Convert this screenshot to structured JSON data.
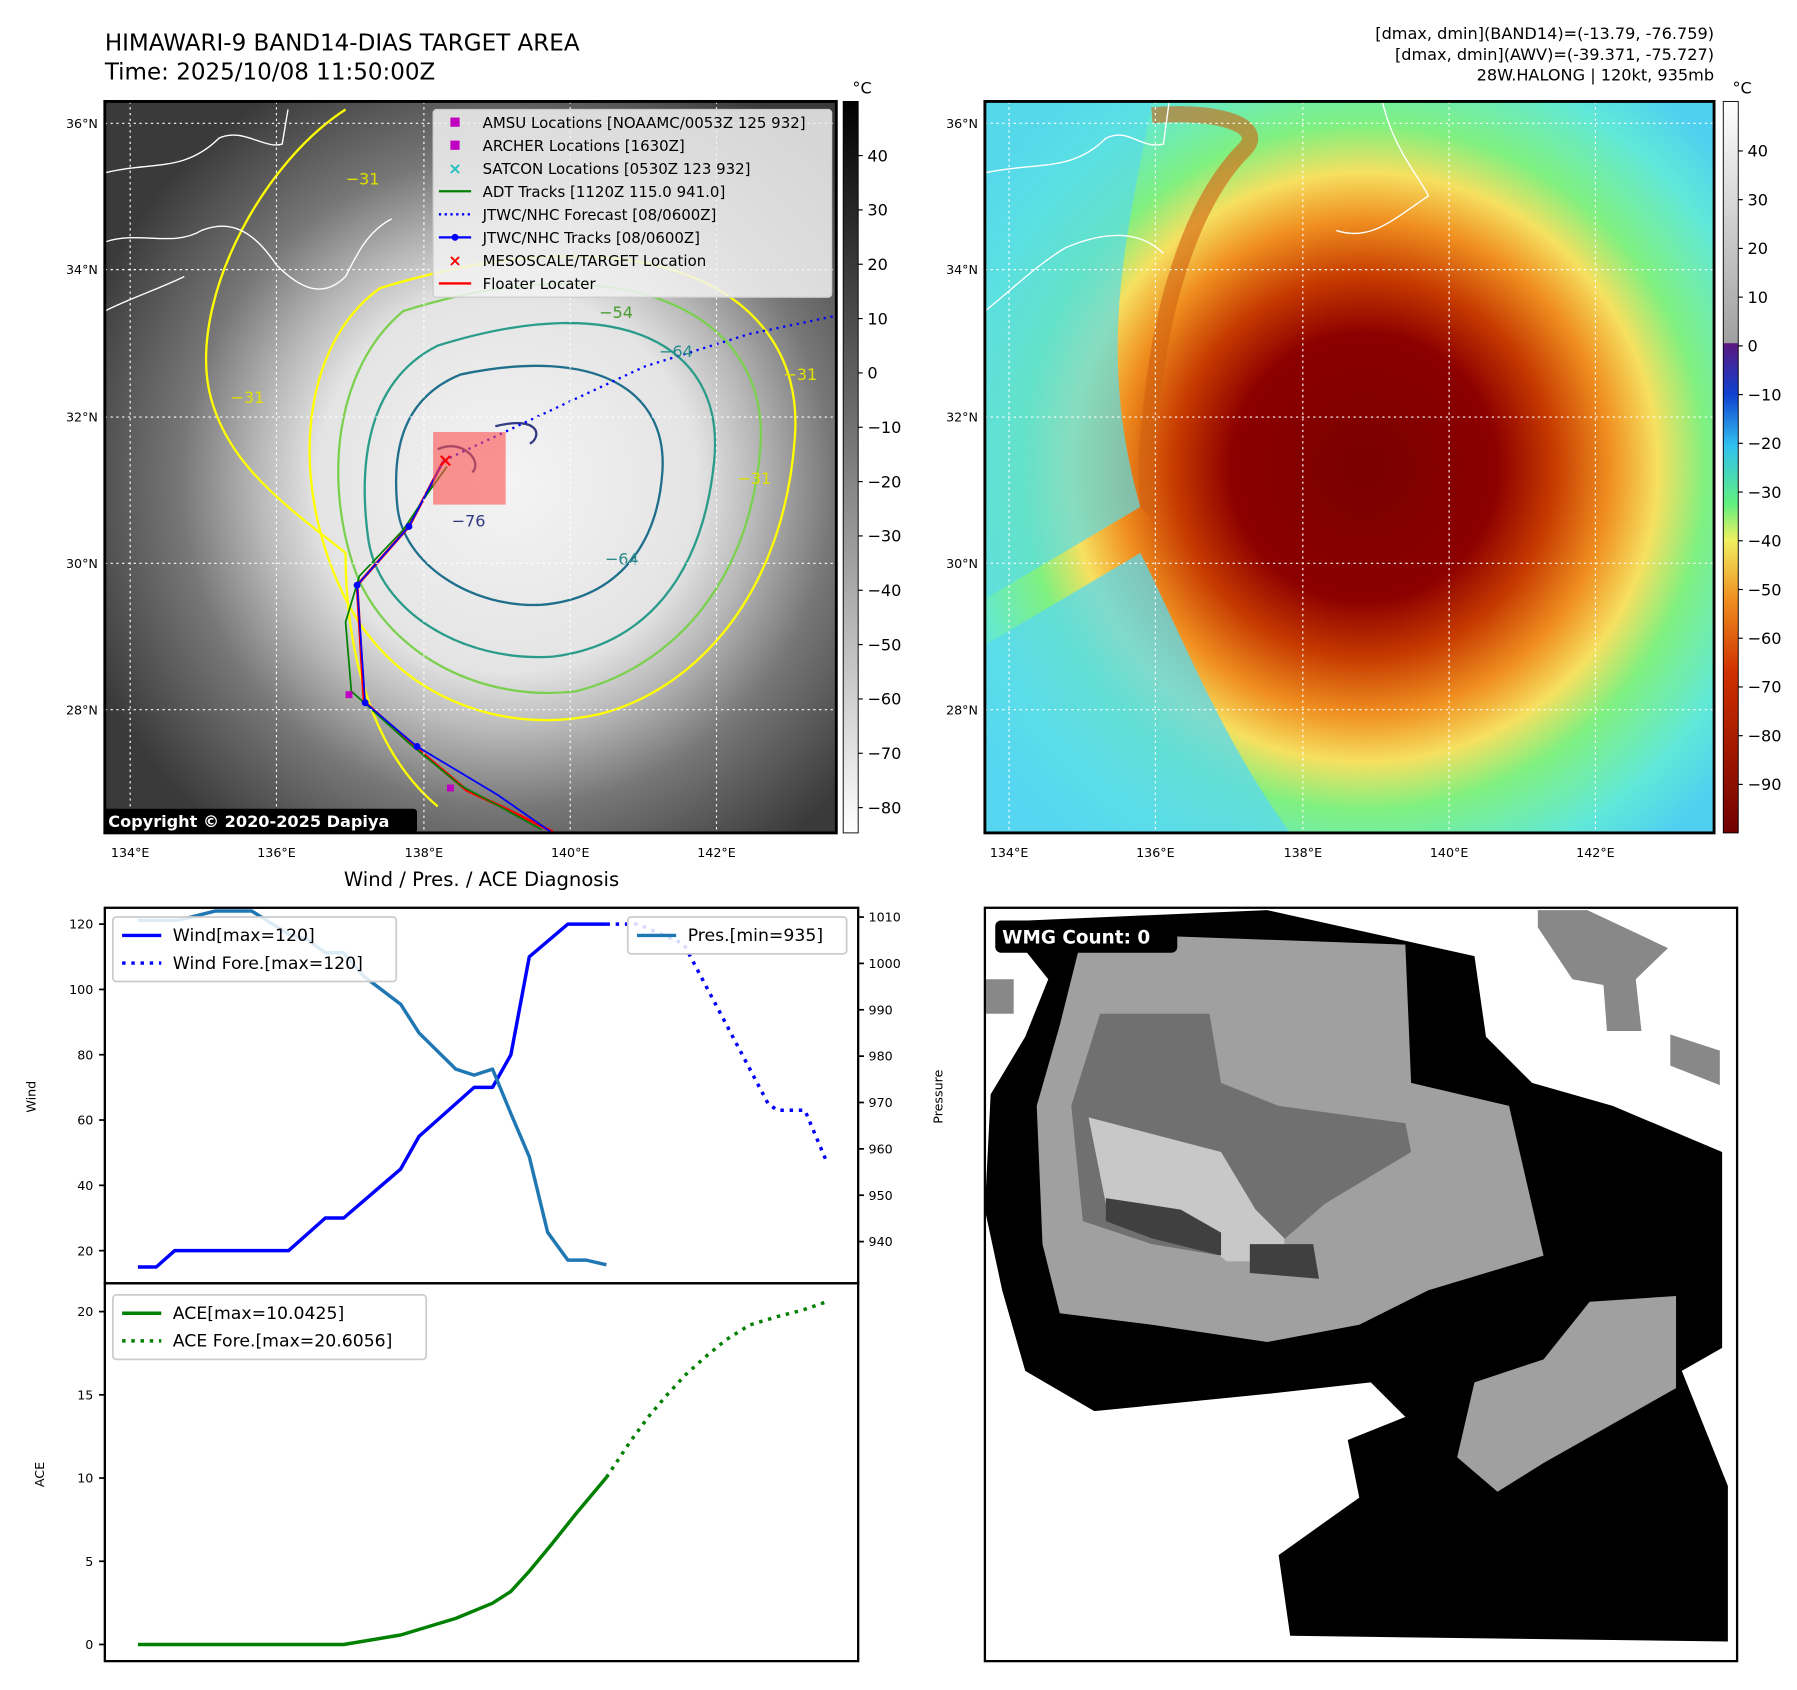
{
  "header": {
    "title": "HIMAWARI-9 BAND14-DIAS TARGET AREA",
    "time": "Time: 2025/10/08 11:50:00Z",
    "info": [
      "[dmax, dmin](BAND14)=(-13.79, -76.759)",
      "[dmax, dmin](AWV)=(-39.371, -75.727)",
      "28W.HALONG | 120kt, 935mb"
    ]
  },
  "map_ir": {
    "lat_labels": [
      "36°N",
      "34°N",
      "32°N",
      "30°N",
      "28°N"
    ],
    "lon_labels": [
      "134°E",
      "136°E",
      "138°E",
      "140°E",
      "142°E"
    ],
    "colorbar_unit": "°C",
    "colorbar_ticks": [
      "40",
      "30",
      "20",
      "10",
      "0",
      "−10",
      "−20",
      "−30",
      "−40",
      "−50",
      "−60",
      "−70",
      "−80"
    ],
    "copyright": "Copyright © 2020-2025 Dapiya",
    "contour_labels": [
      "−31",
      "−31",
      "−31",
      "−64",
      "−64",
      "−76",
      "−54",
      "−31"
    ],
    "legend": [
      {
        "label": "AMSU Locations [NOAAMC/0053Z 125 932]",
        "marker": "square",
        "color": "#c000c0"
      },
      {
        "label": "ARCHER Locations [1630Z]",
        "marker": "square",
        "color": "#c000c0"
      },
      {
        "label": "SATCON Locations [0530Z 123 932]",
        "marker": "x",
        "color": "#20c0c0"
      },
      {
        "label": "ADT Tracks [1120Z 115.0 941.0]",
        "marker": "line",
        "color": "#008000"
      },
      {
        "label": "JTWC/NHC Forecast [08/0600Z]",
        "marker": "dotted",
        "color": "#0000ff"
      },
      {
        "label": "JTWC/NHC Tracks [08/0600Z]",
        "marker": "line-dot",
        "color": "#0000ff"
      },
      {
        "label": "MESOSCALE/TARGET Location",
        "marker": "x",
        "color": "#ff0000"
      },
      {
        "label": "Floater Locater",
        "marker": "line",
        "color": "#ff0000"
      }
    ]
  },
  "map_awv": {
    "lat_labels": [
      "36°N",
      "34°N",
      "32°N",
      "30°N",
      "28°N"
    ],
    "lon_labels": [
      "134°E",
      "136°E",
      "138°E",
      "140°E",
      "142°E"
    ],
    "colorbar_unit": "°C",
    "colorbar_ticks": [
      "40",
      "30",
      "20",
      "10",
      "0",
      "−10",
      "−20",
      "−30",
      "−40",
      "−50",
      "−60",
      "−70",
      "−80",
      "−90"
    ]
  },
  "wmg": {
    "label": "WMG Count: 0"
  },
  "chart_data": [
    {
      "type": "line",
      "title": "Wind / Pres. / ACE Diagnosis",
      "ylabel": "Wind",
      "ylabel_right": "Pressure",
      "ylim": [
        10,
        125
      ],
      "ylim_right": [
        931,
        1012
      ],
      "yticks": [
        20,
        40,
        60,
        80,
        100,
        120
      ],
      "yticks_right": [
        940,
        950,
        960,
        970,
        980,
        990,
        1000,
        1010
      ],
      "xlim": [
        -1.8,
        39.2
      ],
      "series": [
        {
          "name": "Wind[max=120]",
          "axis": "left",
          "style": "solid",
          "color": "#0000ff",
          "x": [
            0,
            1,
            2,
            8.2,
            10.2,
            11.2,
            14.3,
            15.3,
            18.3,
            19.3,
            20.3,
            21.3,
            23.4,
            25.5
          ],
          "y": [
            15,
            15,
            20,
            20,
            30,
            30,
            45,
            55,
            70,
            70,
            80,
            110,
            120,
            120
          ]
        },
        {
          "name": "Wind Fore.[max=120]",
          "axis": "left",
          "style": "dotted",
          "color": "#0000ff",
          "x": [
            25.5,
            27.2,
            29.7,
            34.3,
            34.8,
            36.3,
            37.5
          ],
          "y": [
            120,
            120,
            114,
            65,
            63,
            63,
            47
          ]
        },
        {
          "name": "Pres.[min=935]",
          "axis": "right",
          "style": "solid",
          "color": "#1f77b4",
          "x": [
            0,
            2.2,
            4.2,
            6.2,
            8.2,
            9.2,
            10.2,
            11.2,
            12.3,
            14.3,
            15.3,
            17.3,
            18.3,
            19.3,
            20.3,
            21.3,
            22.3,
            23.4,
            24.4,
            25.5
          ],
          "y": [
            1009.3,
            1009.3,
            1011.3,
            1011.3,
            1006.3,
            1005.2,
            1002.3,
            1002.3,
            997.2,
            991.2,
            985,
            977.2,
            975.9,
            977.2,
            967.6,
            958.3,
            942,
            936,
            936,
            935
          ]
        }
      ],
      "legend_left": [
        "Wind[max=120]",
        "Wind Fore.[max=120]"
      ],
      "legend_right": [
        "Pres.[min=935]"
      ]
    },
    {
      "type": "line",
      "ylabel": "ACE",
      "ylim": [
        -1,
        21.7
      ],
      "yticks": [
        0,
        5,
        10,
        15,
        20
      ],
      "xlim": [
        -1.8,
        39.2
      ],
      "series": [
        {
          "name": "ACE[max=10.0425]",
          "style": "solid",
          "color": "#008000",
          "x": [
            0,
            11.2,
            14.3,
            17.3,
            19.3,
            20.3,
            21.3,
            22.5,
            23.8,
            25.5
          ],
          "y": [
            0,
            0,
            0.57,
            1.57,
            2.48,
            3.19,
            4.4,
            6.0,
            7.8,
            10.04
          ]
        },
        {
          "name": "ACE Fore.[max=20.6056]",
          "style": "dotted",
          "color": "#008000",
          "x": [
            25.5,
            26.8,
            27.8,
            28.8,
            29.8,
            30.8,
            32,
            33.3,
            34.8,
            36.2,
            37.5
          ],
          "y": [
            10.04,
            12.2,
            13.7,
            15,
            16.2,
            17.2,
            18.3,
            19.2,
            19.7,
            20.1,
            20.6
          ]
        }
      ],
      "legend": [
        "ACE[max=10.0425]",
        "ACE Fore.[max=20.6056]"
      ]
    }
  ]
}
